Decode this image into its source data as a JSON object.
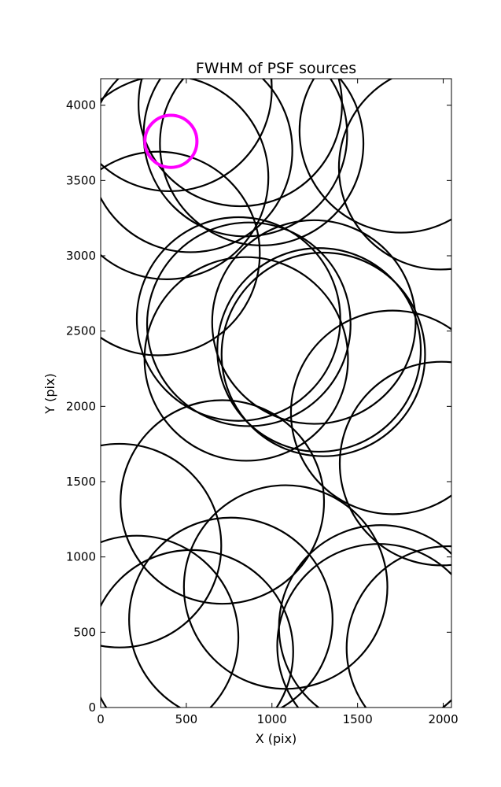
{
  "chart_data": {
    "type": "scatter",
    "title": "FWHM of PSF sources",
    "xlabel": "X (pix)",
    "ylabel": "Y (pix)",
    "xlim": [
      0,
      2048
    ],
    "ylim": [
      0,
      4176
    ],
    "xticks": [
      0,
      500,
      1000,
      1500,
      2000
    ],
    "yticks": [
      0,
      500,
      1000,
      1500,
      2000,
      2500,
      3000,
      3500,
      4000
    ],
    "grid": false,
    "marker": "open circle, size proportional to FWHM",
    "colors": {
      "normal": "#000000",
      "highlight": "#ff00ff"
    },
    "series": [
      {
        "marker_color": "#000000",
        "points": [
          {
            "x": 405,
            "y": 4105,
            "r": 300
          },
          {
            "x": 815,
            "y": 4005,
            "r": 300
          },
          {
            "x": 525,
            "y": 3700,
            "r": 300
          },
          {
            "x": 845,
            "y": 3805,
            "r": 300
          },
          {
            "x": 940,
            "y": 3745,
            "r": 300
          },
          {
            "x": 385,
            "y": 3520,
            "r": 300
          },
          {
            "x": 1755,
            "y": 3830,
            "r": 300
          },
          {
            "x": 1985,
            "y": 3585,
            "r": 300
          },
          {
            "x": 335,
            "y": 3015,
            "r": 300
          },
          {
            "x": 805,
            "y": 2580,
            "r": 300
          },
          {
            "x": 865,
            "y": 2545,
            "r": 300
          },
          {
            "x": 850,
            "y": 2315,
            "r": 300
          },
          {
            "x": 1245,
            "y": 2560,
            "r": 300
          },
          {
            "x": 1275,
            "y": 2375,
            "r": 300
          },
          {
            "x": 1300,
            "y": 2345,
            "r": 300
          },
          {
            "x": 1705,
            "y": 1960,
            "r": 300
          },
          {
            "x": 1990,
            "y": 1620,
            "r": 300
          },
          {
            "x": 710,
            "y": 1365,
            "r": 300
          },
          {
            "x": 110,
            "y": 1075,
            "r": 300
          },
          {
            "x": 1080,
            "y": 800,
            "r": 300
          },
          {
            "x": 760,
            "y": 585,
            "r": 300
          },
          {
            "x": 210,
            "y": 465,
            "r": 300
          },
          {
            "x": 530,
            "y": 370,
            "r": 300
          },
          {
            "x": 1635,
            "y": 535,
            "r": 300
          },
          {
            "x": 1625,
            "y": 410,
            "r": 300
          },
          {
            "x": 2030,
            "y": 395,
            "r": 300
          }
        ]
      },
      {
        "marker_color": "#ff00ff",
        "points": [
          {
            "x": 410,
            "y": 3760,
            "r": 160
          }
        ]
      }
    ]
  }
}
